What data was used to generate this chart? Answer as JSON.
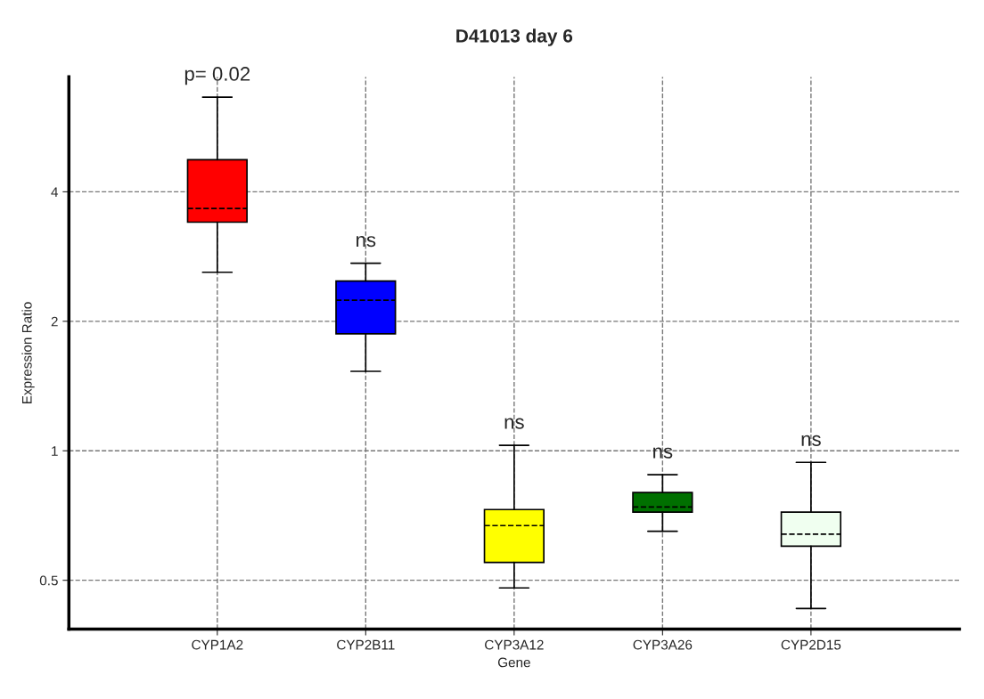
{
  "chart_data": {
    "type": "box",
    "title": "D41013 day 6",
    "xlabel": "Gene",
    "ylabel": "Expression Ratio",
    "categories": [
      "CYP1A2",
      "CYP2B11",
      "CYP3A12",
      "CYP3A26",
      "CYP2D15"
    ],
    "colors": [
      "#ff0000",
      "#0000ff",
      "#ffff00",
      "#007000",
      "#f0fff0"
    ],
    "boxes": [
      {
        "low": 2.6,
        "q1": 3.4,
        "median": 3.66,
        "q3": 4.75,
        "high": 6.64
      },
      {
        "low": 1.53,
        "q1": 1.87,
        "median": 2.24,
        "q3": 2.48,
        "high": 2.73
      },
      {
        "low": 0.48,
        "q1": 0.55,
        "median": 0.67,
        "q3": 0.73,
        "high": 1.03
      },
      {
        "low": 0.65,
        "q1": 0.72,
        "median": 0.74,
        "q3": 0.8,
        "high": 0.88
      },
      {
        "low": 0.43,
        "q1": 0.6,
        "median": 0.64,
        "q3": 0.72,
        "high": 0.94
      }
    ],
    "annotations": [
      "p= 0.02",
      "ns",
      "ns",
      "ns",
      "ns"
    ],
    "log": "y",
    "ylim": [
      0.385,
      7.4
    ],
    "yticks": [
      0.5,
      1,
      2,
      4
    ],
    "grid": true
  }
}
